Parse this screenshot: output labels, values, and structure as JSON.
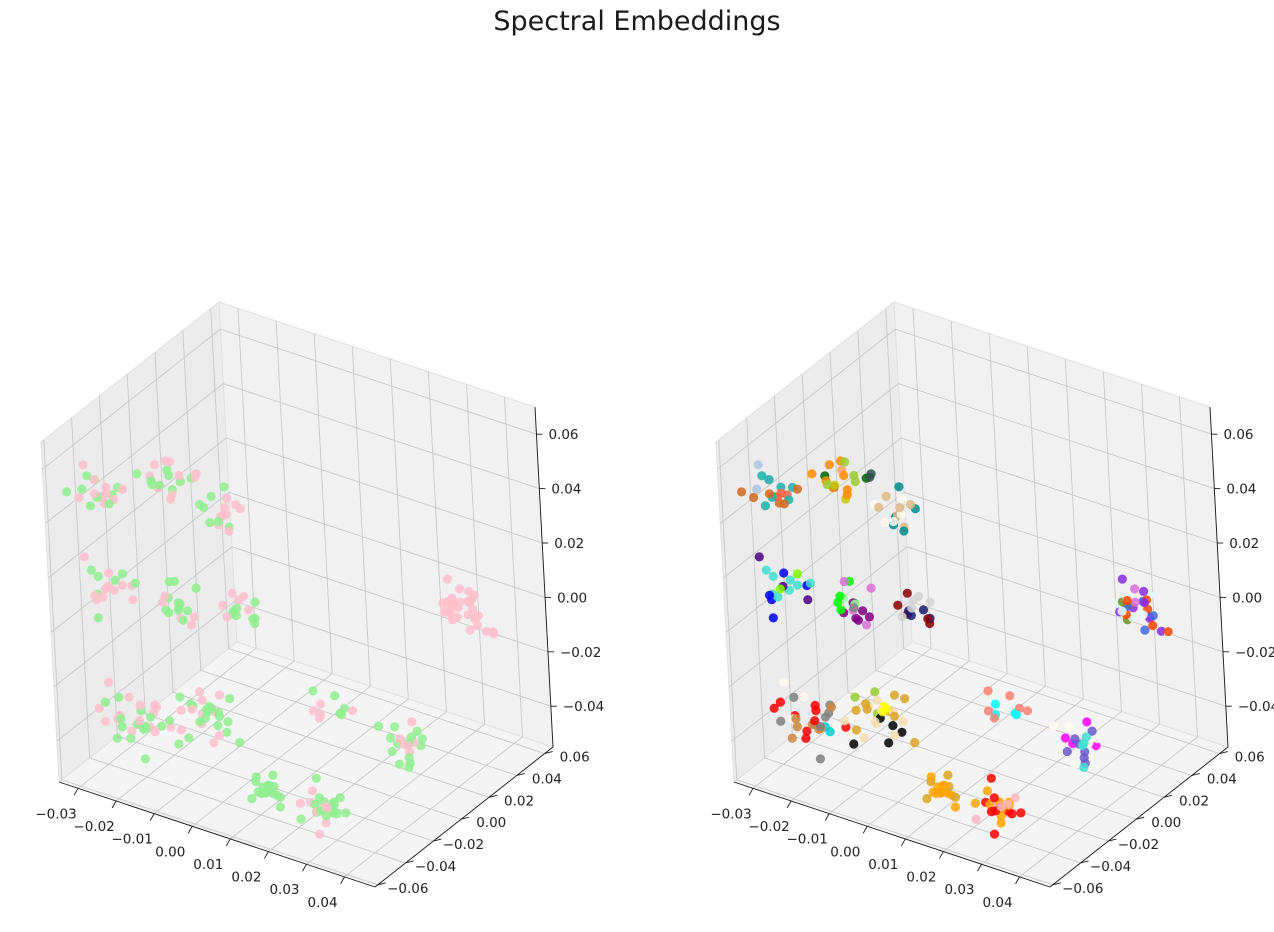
{
  "title": "Spectral Embeddings",
  "chart_data": [
    {
      "type": "scatter",
      "projection": "3d",
      "grid": true,
      "xlim": [
        -0.035,
        0.048
      ],
      "ylim": [
        -0.062,
        0.066
      ],
      "zlim": [
        -0.055,
        0.07
      ],
      "xticks": [
        "−0.03",
        "−0.02",
        "−0.01",
        "0.00",
        "0.01",
        "0.02",
        "0.03",
        "0.04"
      ],
      "yticks": [
        "−0.06",
        "−0.04",
        "−0.02",
        "0.00",
        "0.02",
        "0.04",
        "0.06"
      ],
      "zticks": [
        "−0.04",
        "−0.02",
        "0.00",
        "0.02",
        "0.04",
        "0.06"
      ],
      "point_colors": [
        "#90ee90",
        "#ffc0cb"
      ],
      "clusters": [
        {
          "x": -0.033,
          "y": -0.03,
          "z": 0.04,
          "n": 20,
          "spread": 0.006,
          "colors": [
            "#90ee90",
            "#ffc0cb"
          ]
        },
        {
          "x": -0.02,
          "y": -0.015,
          "z": 0.045,
          "n": 20,
          "spread": 0.006,
          "colors": [
            "#ffc0cb",
            "#90ee90"
          ]
        },
        {
          "x": -0.01,
          "y": 0.0,
          "z": 0.032,
          "n": 16,
          "spread": 0.006,
          "colors": [
            "#ffc0cb",
            "#90ee90"
          ]
        },
        {
          "x": -0.03,
          "y": -0.03,
          "z": 0.005,
          "n": 18,
          "spread": 0.006,
          "colors": [
            "#ffc0cb",
            "#90ee90"
          ]
        },
        {
          "x": -0.018,
          "y": -0.018,
          "z": 0.0,
          "n": 18,
          "spread": 0.006,
          "colors": [
            "#ffc0cb",
            "#90ee90"
          ]
        },
        {
          "x": -0.008,
          "y": -0.005,
          "z": 0.0,
          "n": 14,
          "spread": 0.006,
          "colors": [
            "#90ee90",
            "#ffc0cb"
          ]
        },
        {
          "x": -0.025,
          "y": -0.03,
          "z": -0.04,
          "n": 30,
          "spread": 0.008,
          "colors": [
            "#90ee90",
            "#ffc0cb"
          ]
        },
        {
          "x": -0.012,
          "y": -0.015,
          "z": -0.042,
          "n": 30,
          "spread": 0.008,
          "colors": [
            "#ffc0cb",
            "#90ee90"
          ]
        },
        {
          "x": 0.008,
          "y": -0.03,
          "z": -0.052,
          "n": 18,
          "spread": 0.005,
          "colors": [
            "#90ee90"
          ]
        },
        {
          "x": 0.022,
          "y": -0.03,
          "z": -0.05,
          "n": 26,
          "spread": 0.006,
          "colors": [
            "#ffc0cb",
            "#90ee90"
          ]
        },
        {
          "x": 0.015,
          "y": 0.0,
          "z": -0.03,
          "n": 10,
          "spread": 0.005,
          "colors": [
            "#ffc0cb",
            "#90ee90"
          ]
        },
        {
          "x": 0.03,
          "y": 0.01,
          "z": -0.04,
          "n": 20,
          "spread": 0.006,
          "colors": [
            "#90ee90",
            "#ffc0cb"
          ]
        },
        {
          "x": 0.036,
          "y": 0.04,
          "z": 0.0,
          "n": 30,
          "spread": 0.006,
          "colors": [
            "#ffc0cb"
          ]
        }
      ]
    },
    {
      "type": "scatter",
      "projection": "3d",
      "grid": true,
      "xlim": [
        -0.035,
        0.048
      ],
      "ylim": [
        -0.062,
        0.066
      ],
      "zlim": [
        -0.055,
        0.07
      ],
      "xticks": [
        "−0.03",
        "−0.02",
        "−0.01",
        "0.00",
        "0.01",
        "0.02",
        "0.03",
        "0.04"
      ],
      "yticks": [
        "−0.06",
        "−0.04",
        "−0.02",
        "0.00",
        "0.02",
        "0.04",
        "0.06"
      ],
      "zticks": [
        "−0.04",
        "−0.02",
        "0.00",
        "0.02",
        "0.04",
        "0.06"
      ],
      "point_colors": [
        "#b0c4de",
        "#2f4f4f",
        "#c8c800",
        "#ff6347",
        "#d2691e",
        "#20b2aa",
        "#9acd32",
        "#006400",
        "#f4a460",
        "#008b8b",
        "#0000ff",
        "#4b0082",
        "#7cfc00",
        "#800080",
        "#da70d6",
        "#8b0000",
        "#808080",
        "#98fb98",
        "#ffff00",
        "#000000",
        "#daa520",
        "#ff0000",
        "#00ced1",
        "#cd853f",
        "#fffaf0",
        "#ff8c00",
        "#00ffff",
        "#fa8072",
        "#ff00ff",
        "#6a5acd",
        "#8a2be2",
        "#ffb6c1",
        "#ff4500",
        "#40e0d0",
        "#deb887",
        "#e0ffff",
        "#d3d3d3",
        "#191970"
      ],
      "clusters": [
        {
          "x": -0.033,
          "y": -0.03,
          "z": 0.04,
          "n": 20,
          "spread": 0.006,
          "colors": [
            "#ff6347",
            "#d2691e",
            "#20b2aa",
            "#b0c4de"
          ]
        },
        {
          "x": -0.02,
          "y": -0.015,
          "z": 0.045,
          "n": 20,
          "spread": 0.006,
          "colors": [
            "#2f4f4f",
            "#c8c800",
            "#9acd32",
            "#006400",
            "#f4a460",
            "#ff8c00"
          ]
        },
        {
          "x": -0.01,
          "y": 0.0,
          "z": 0.032,
          "n": 16,
          "spread": 0.006,
          "colors": [
            "#fffaf0",
            "#008b8b",
            "#deb887"
          ]
        },
        {
          "x": -0.03,
          "y": -0.03,
          "z": 0.005,
          "n": 18,
          "spread": 0.006,
          "colors": [
            "#4b0082",
            "#7cfc00",
            "#40e0d0",
            "#0000ff"
          ]
        },
        {
          "x": -0.018,
          "y": -0.018,
          "z": 0.0,
          "n": 18,
          "spread": 0.006,
          "colors": [
            "#800080",
            "#da70d6",
            "#808080",
            "#98fb98",
            "#00ff00"
          ]
        },
        {
          "x": -0.008,
          "y": -0.005,
          "z": 0.0,
          "n": 14,
          "spread": 0.006,
          "colors": [
            "#8b0000",
            "#191970",
            "#d3d3d3"
          ]
        },
        {
          "x": -0.025,
          "y": -0.03,
          "z": -0.04,
          "n": 30,
          "spread": 0.008,
          "colors": [
            "#cd853f",
            "#808080",
            "#ff0000",
            "#00ced1",
            "#fffaf0"
          ]
        },
        {
          "x": -0.012,
          "y": -0.015,
          "z": -0.042,
          "n": 30,
          "spread": 0.008,
          "colors": [
            "#ffff00",
            "#000000",
            "#daa520",
            "#9acd32",
            "#f5deb3"
          ]
        },
        {
          "x": 0.008,
          "y": -0.03,
          "z": -0.052,
          "n": 18,
          "spread": 0.005,
          "colors": [
            "#ffa500",
            "#daa520"
          ]
        },
        {
          "x": 0.022,
          "y": -0.03,
          "z": -0.05,
          "n": 26,
          "spread": 0.006,
          "colors": [
            "#ff0000",
            "#ffa500",
            "#ffb6c1"
          ]
        },
        {
          "x": 0.015,
          "y": 0.0,
          "z": -0.03,
          "n": 10,
          "spread": 0.005,
          "colors": [
            "#00ffff",
            "#fa8072"
          ]
        },
        {
          "x": 0.03,
          "y": 0.01,
          "z": -0.04,
          "n": 20,
          "spread": 0.006,
          "colors": [
            "#6a5acd",
            "#ff00ff",
            "#40e0d0",
            "#fffaf0"
          ]
        },
        {
          "x": 0.036,
          "y": 0.04,
          "z": 0.0,
          "n": 30,
          "spread": 0.006,
          "colors": [
            "#8a2be2",
            "#6b8e23",
            "#ff4500",
            "#e0ffff",
            "#da70d6",
            "#4169e1"
          ]
        }
      ]
    }
  ]
}
